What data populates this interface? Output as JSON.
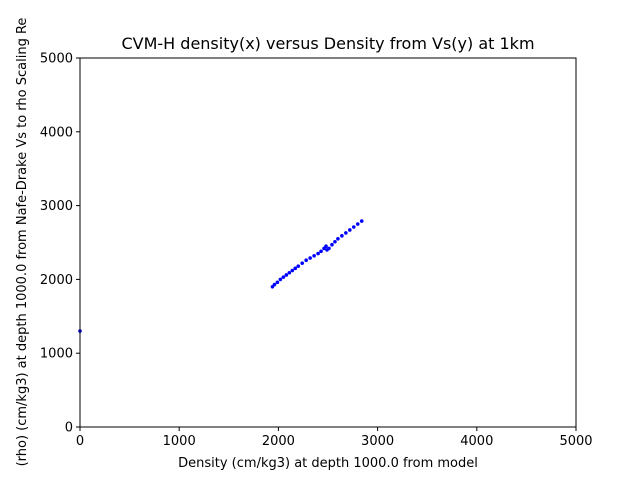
{
  "chart_data": {
    "type": "scatter",
    "title": "CVM-H density(x) versus Density from Vs(y) at 1km",
    "xlabel": "Density (cm/kg3) at depth 1000.0 from model",
    "ylabel": "(rho) (cm/kg3) at depth 1000.0 from Nafe-Drake Vs to rho Scaling Re",
    "xlim": [
      0,
      5000
    ],
    "ylim": [
      0,
      5000
    ],
    "xticks": [
      "0",
      "1000",
      "2000",
      "3000",
      "4000",
      "5000"
    ],
    "yticks": [
      "0",
      "1000",
      "2000",
      "3000",
      "4000",
      "5000"
    ],
    "grid": false,
    "series": [
      {
        "color": "#0000ff",
        "points": [
          [
            0,
            1300
          ],
          [
            1940,
            1900
          ],
          [
            1960,
            1930
          ],
          [
            1990,
            1960
          ],
          [
            2020,
            2000
          ],
          [
            2050,
            2030
          ],
          [
            2080,
            2060
          ],
          [
            2110,
            2090
          ],
          [
            2140,
            2120
          ],
          [
            2170,
            2150
          ],
          [
            2200,
            2180
          ],
          [
            2240,
            2220
          ],
          [
            2280,
            2260
          ],
          [
            2320,
            2290
          ],
          [
            2360,
            2320
          ],
          [
            2400,
            2350
          ],
          [
            2430,
            2380
          ],
          [
            2460,
            2420
          ],
          [
            2480,
            2450
          ],
          [
            2490,
            2400
          ],
          [
            2510,
            2420
          ],
          [
            2540,
            2470
          ],
          [
            2570,
            2510
          ],
          [
            2600,
            2550
          ],
          [
            2640,
            2590
          ],
          [
            2680,
            2630
          ],
          [
            2720,
            2670
          ],
          [
            2760,
            2710
          ],
          [
            2800,
            2750
          ],
          [
            2840,
            2790
          ]
        ]
      }
    ]
  }
}
